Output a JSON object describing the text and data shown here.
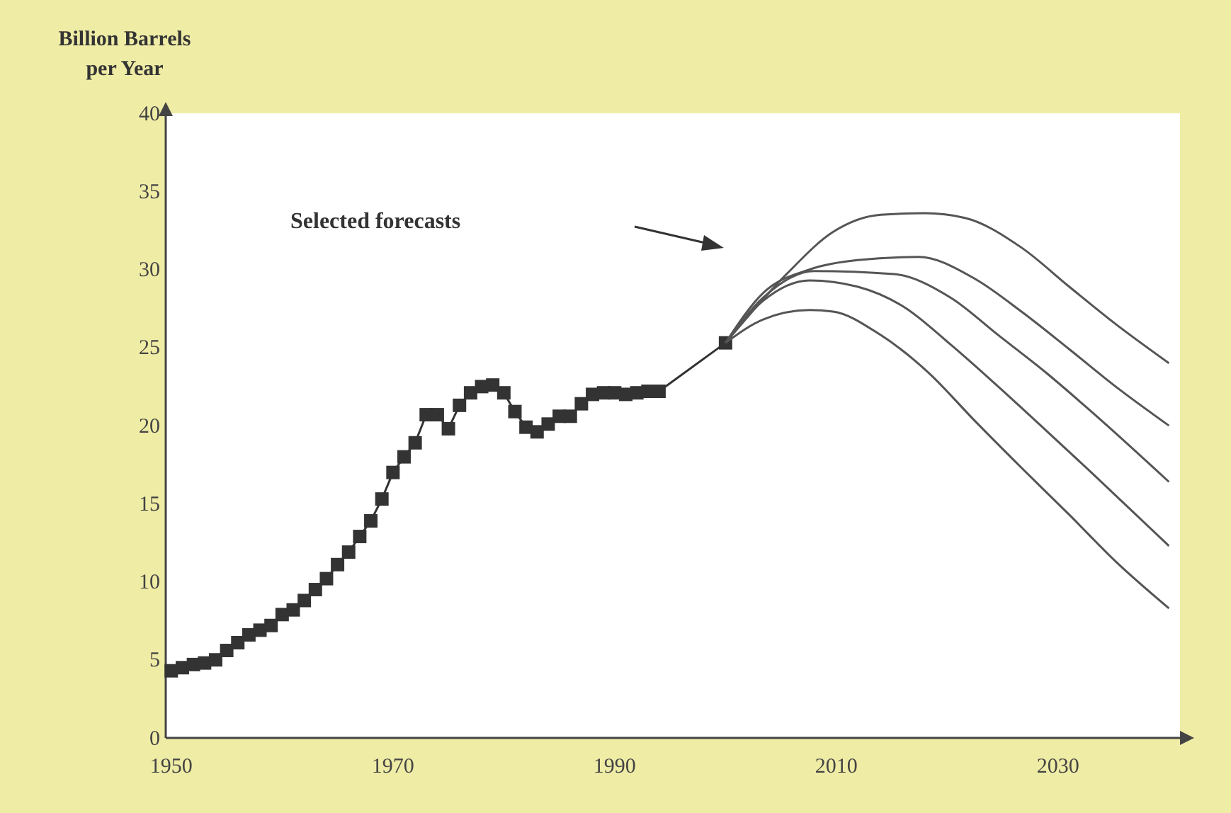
{
  "chart_data": {
    "type": "line",
    "ylabel": "Billion Barrels per Year",
    "annotations": [
      "Selected forecasts"
    ],
    "xlim": [
      1949.5,
      2041
    ],
    "xticks": [
      1950,
      1970,
      1990,
      2010,
      2030
    ],
    "ylim": [
      0,
      40
    ],
    "yticks": [
      0,
      5,
      10,
      15,
      20,
      25,
      30,
      35,
      40
    ],
    "series": [
      {
        "color": "#333333",
        "marker": "square",
        "x": [
          1950,
          1951,
          1952,
          1953,
          1954,
          1955,
          1956,
          1957,
          1958,
          1959,
          1960,
          1961,
          1962,
          1963,
          1964,
          1965,
          1966,
          1967,
          1968,
          1969,
          1970,
          1971,
          1972,
          1973,
          1974,
          1975,
          1976,
          1977,
          1978,
          1979,
          1980,
          1981,
          1982,
          1983,
          1984,
          1985,
          1986,
          1987,
          1988,
          1989,
          1990,
          1991,
          1992,
          1993,
          1994,
          2000
        ],
        "values": [
          4.3,
          4.5,
          4.7,
          4.8,
          5.0,
          5.6,
          6.1,
          6.6,
          6.9,
          7.2,
          7.9,
          8.2,
          8.8,
          9.5,
          10.2,
          11.1,
          11.9,
          12.9,
          13.9,
          15.3,
          17.0,
          18.0,
          18.9,
          20.7,
          20.7,
          19.8,
          21.3,
          22.1,
          22.5,
          22.6,
          22.1,
          20.9,
          19.9,
          19.6,
          20.1,
          20.6,
          20.6,
          21.4,
          22.0,
          22.1,
          22.1,
          22.0,
          22.1,
          22.2,
          22.2,
          25.3
        ]
      },
      {
        "color": "#555555",
        "marker": "none",
        "x": [
          2000,
          2005.5,
          2009.7,
          2014,
          2018,
          2021.6,
          2026.7,
          2031,
          2035.2,
          2040
        ],
        "values": [
          25.3,
          29.7,
          32.4,
          33.5,
          33.6,
          33.3,
          31.4,
          28.9,
          26.5,
          24.0
        ]
      },
      {
        "color": "#555555",
        "marker": "none",
        "x": [
          2000,
          2003.4,
          2007.6,
          2011.9,
          2017.4,
          2022.5,
          2026.7,
          2031,
          2035.2,
          2040
        ],
        "values": [
          25.3,
          28.5,
          30.0,
          30.6,
          30.8,
          29.4,
          27.3,
          24.9,
          22.5,
          20.0
        ]
      },
      {
        "color": "#555555",
        "marker": "none",
        "x": [
          2000,
          2003.4,
          2008,
          2015.2,
          2020.3,
          2024.6,
          2028.9,
          2033,
          2040
        ],
        "values": [
          25.3,
          28.2,
          29.9,
          29.7,
          28.2,
          25.8,
          23.4,
          20.9,
          16.4
        ]
      },
      {
        "color": "#555555",
        "marker": "none",
        "x": [
          2000,
          2003.4,
          2007.6,
          2011.9,
          2016.1,
          2020.3,
          2024.6,
          2028.9,
          2033,
          2040
        ],
        "values": [
          25.3,
          28.0,
          29.3,
          28.9,
          27.6,
          25.2,
          22.5,
          19.7,
          17.0,
          12.3
        ]
      },
      {
        "color": "#555555",
        "marker": "none",
        "x": [
          2000,
          2003.4,
          2007.6,
          2009.7,
          2014,
          2018.3,
          2022.5,
          2026.7,
          2031,
          2035.2,
          2040
        ],
        "values": [
          25.3,
          26.8,
          27.4,
          27.3,
          25.8,
          23.4,
          20.3,
          17.3,
          14.3,
          11.3,
          8.3
        ]
      }
    ]
  }
}
